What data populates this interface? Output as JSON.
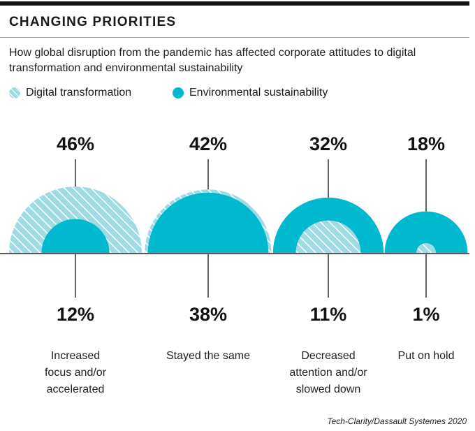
{
  "title": "CHANGING PRIORITIES",
  "subtitle": "How global disruption from the pandemic has affected corporate attitudes to digital transformation and environmental sustainability",
  "source": "Tech-Clarity/Dassault Systemes 2020",
  "colors": {
    "digital": "#9fdbe5",
    "digital_hatch": "#ffffff",
    "environmental": "#00b9cf",
    "text": "#111111"
  },
  "chart_data": {
    "type": "semicircle-area",
    "title": "CHANGING PRIORITIES",
    "categories": [
      "Increased focus and/or accelerated",
      "Stayed the same",
      "Decreased attention and/or slowed down",
      "Put on hold"
    ],
    "series": [
      {
        "name": "Digital transformation",
        "values": [
          46,
          42,
          11,
          1
        ],
        "labels": [
          "46%",
          "42%",
          "11%",
          "1%"
        ]
      },
      {
        "name": "Environmental sustainability",
        "values": [
          12,
          38,
          32,
          18
        ],
        "labels": [
          "12%",
          "38%",
          "32%",
          "18%"
        ]
      }
    ],
    "top_labels": [
      "46%",
      "42%",
      "32%",
      "18%"
    ],
    "bottom_labels": [
      "12%",
      "38%",
      "11%",
      "1%"
    ],
    "category_lines": [
      [
        "Increased",
        "focus and/or",
        "accelerated"
      ],
      [
        "Stayed the same"
      ],
      [
        "Decreased",
        "attention and/or",
        "slowed down"
      ],
      [
        "Put on hold"
      ]
    ],
    "legend": [
      "Digital transformation",
      "Environmental sustainability"
    ]
  }
}
